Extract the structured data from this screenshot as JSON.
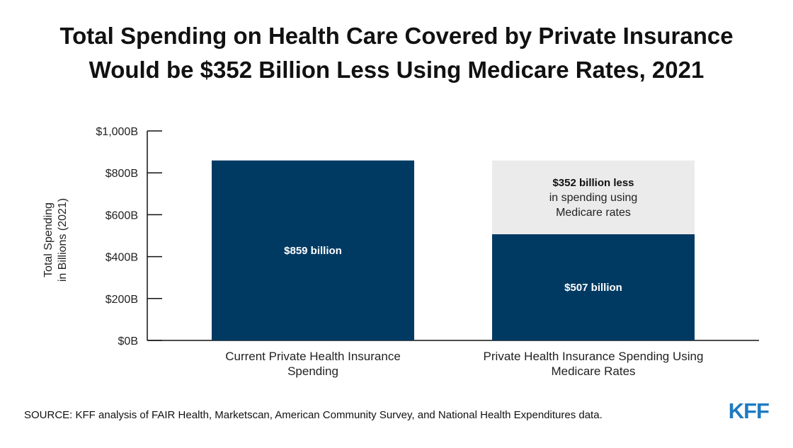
{
  "chart_data": {
    "type": "bar",
    "stacked": true,
    "title": "Total Spending on Health Care Covered by Private Insurance Would be $352 Billion Less Using Medicare Rates, 2021",
    "title_lines": [
      "Total Spending on Health Care Covered by Private Insurance",
      "Would be $352 Billion Less Using Medicare Rates, 2021"
    ],
    "ylabel_lines": [
      "Total Spending",
      "in Billions (2021)"
    ],
    "ylim": [
      0,
      1000
    ],
    "yticks": [
      0,
      200,
      400,
      600,
      800,
      1000
    ],
    "ytick_labels": [
      "$0B",
      "$200B",
      "$400B",
      "$600B",
      "$800B",
      "$1,000B"
    ],
    "grid": false,
    "categories": [
      [
        "Current Private Health Insurance",
        "Spending"
      ],
      [
        "Private Health Insurance Spending Using",
        "Medicare Rates"
      ]
    ],
    "bars": [
      {
        "segments": [
          {
            "value": 859,
            "label": "$859 billion",
            "color": "#003a63"
          }
        ]
      },
      {
        "segments": [
          {
            "value": 507,
            "label": "$507 billion",
            "color": "#003a63"
          },
          {
            "value": 352,
            "label_lines": [
              "$352 billion less",
              "in spending using",
              "Medicare rates"
            ],
            "color": "#ebebeb"
          }
        ]
      }
    ]
  },
  "source": "SOURCE: KFF analysis of FAIR Health, Marketscan, American Community Survey, and National Health Expenditures data.",
  "logo": {
    "text": "KFF",
    "color": "#1f7bc2"
  },
  "colors": {
    "bar_dark": "#003a63",
    "bar_light": "#ebebeb",
    "axis": "#111111"
  }
}
